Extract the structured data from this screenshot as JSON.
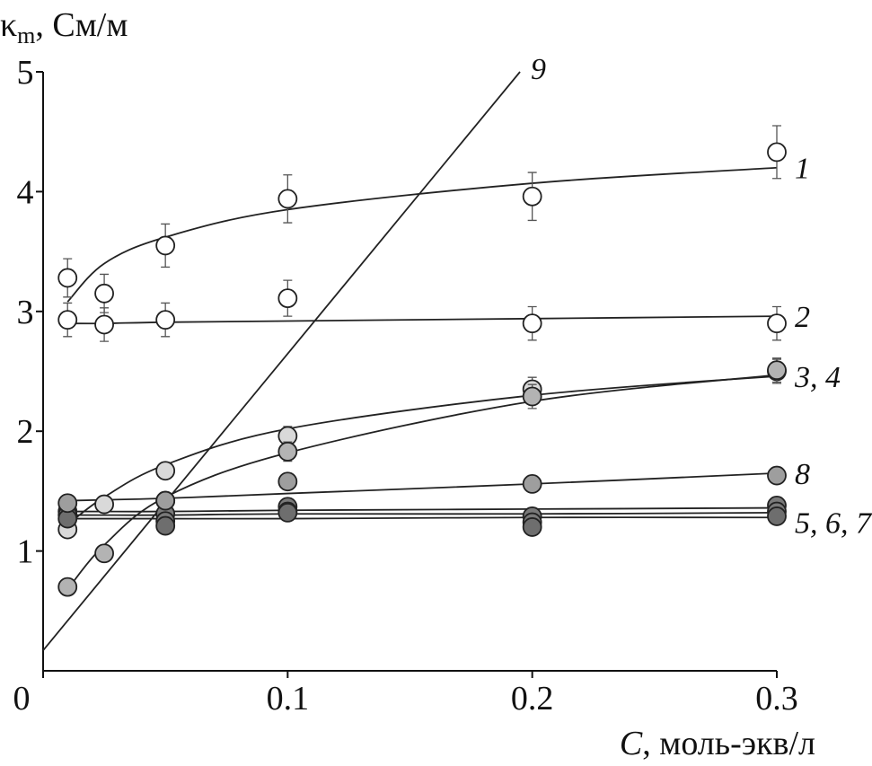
{
  "chart_data": {
    "type": "scatter",
    "y_label": {
      "symbol": "κ",
      "subscript": "m",
      "unit": ", См/м"
    },
    "x_label": {
      "symbol": "C",
      "unit": ", моль-экв/л"
    },
    "xlim": [
      0,
      0.3
    ],
    "ylim": [
      0,
      5
    ],
    "xticks": [
      0,
      0.1,
      0.2,
      0.3
    ],
    "yticks": [
      1,
      2,
      3,
      4,
      5
    ],
    "series": [
      {
        "label": "1",
        "color": "#ffffff",
        "x": [
          0.01,
          0.025,
          0.05,
          0.1,
          0.2,
          0.3
        ],
        "values": [
          3.28,
          3.15,
          3.55,
          3.94,
          3.96,
          4.33
        ],
        "errors": [
          0.16,
          0.16,
          0.18,
          0.2,
          0.2,
          0.22
        ],
        "fit": [
          3.08,
          3.4,
          3.62,
          3.85,
          4.07,
          4.2
        ]
      },
      {
        "label": "2",
        "color": "#ffffff",
        "x": [
          0.01,
          0.025,
          0.05,
          0.1,
          0.2,
          0.3
        ],
        "values": [
          2.93,
          2.89,
          2.93,
          3.11,
          2.9,
          2.9
        ],
        "errors": [
          0.14,
          0.14,
          0.14,
          0.15,
          0.14,
          0.14
        ],
        "fit": [
          2.9,
          2.9,
          2.91,
          2.92,
          2.94,
          2.96
        ]
      },
      {
        "label": "3, 4",
        "color": "#d9d9d9",
        "x": [
          0.01,
          0.025,
          0.05,
          0.1,
          0.2,
          0.3
        ],
        "values": [
          1.18,
          1.39,
          1.67,
          1.96,
          2.35,
          2.5
        ],
        "errors": [
          0.05,
          0.05,
          0.06,
          0.08,
          0.1,
          0.1
        ],
        "fit": [
          1.22,
          1.45,
          1.72,
          2.02,
          2.3,
          2.46
        ]
      },
      {
        "color": "#b3b3b3",
        "x": [
          0.01,
          0.025,
          0.05,
          0.1,
          0.2,
          0.3
        ],
        "values": [
          0.7,
          0.98,
          1.42,
          1.83,
          2.29,
          2.51
        ],
        "errors": [
          0.05,
          0.05,
          0.06,
          0.08,
          0.1,
          0.1
        ],
        "fit": [
          0.68,
          1.05,
          1.45,
          1.82,
          2.25,
          2.47
        ]
      },
      {
        "label": "5, 6, 7",
        "color": "#7a7a7a",
        "x": [
          0.01,
          0.05,
          0.1,
          0.2,
          0.3
        ],
        "values": [
          1.33,
          1.31,
          1.37,
          1.29,
          1.38
        ],
        "fit": [
          1.33,
          1.33,
          1.34,
          1.35,
          1.36
        ]
      },
      {
        "color": "#7a7a7a",
        "x": [
          0.01,
          0.05,
          0.1,
          0.2,
          0.3
        ],
        "values": [
          1.3,
          1.25,
          1.33,
          1.24,
          1.33
        ],
        "fit": [
          1.3,
          1.3,
          1.31,
          1.31,
          1.32
        ]
      },
      {
        "color": "#6e6e6e",
        "x": [
          0.01,
          0.05,
          0.1,
          0.2,
          0.3
        ],
        "values": [
          1.27,
          1.21,
          1.32,
          1.2,
          1.29
        ],
        "fit": [
          1.27,
          1.27,
          1.27,
          1.28,
          1.28
        ]
      },
      {
        "label": "8",
        "color": "#9e9e9e",
        "x": [
          0.01,
          0.05,
          0.1,
          0.2,
          0.3
        ],
        "values": [
          1.4,
          1.42,
          1.58,
          1.56,
          1.63
        ],
        "fit": [
          1.42,
          1.44,
          1.48,
          1.56,
          1.65
        ]
      },
      {
        "label": "9",
        "x": [
          0,
          0.195
        ],
        "fit": [
          0.17,
          5
        ]
      }
    ]
  }
}
